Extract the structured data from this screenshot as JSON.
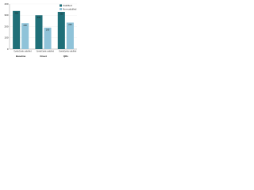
{
  "chart_data": {
    "type": "bar",
    "categories": [
      "Baseline",
      "Onset",
      "QRs"
    ],
    "bar_labels": [
      "Cystic",
      "Cystic calcified"
    ],
    "series": [
      {
        "name": "Calcified",
        "color": "#1f6f78",
        "values": [
          338,
          300,
          330
        ]
      },
      {
        "name": "Non-calcified",
        "color": "#8fc3d9",
        "values": [
          230,
          190,
          235
        ]
      }
    ],
    "ylim": [
      0,
      400
    ],
    "yticks": [
      0,
      100,
      200,
      300,
      400
    ],
    "grid": true,
    "legend": "top-right"
  }
}
